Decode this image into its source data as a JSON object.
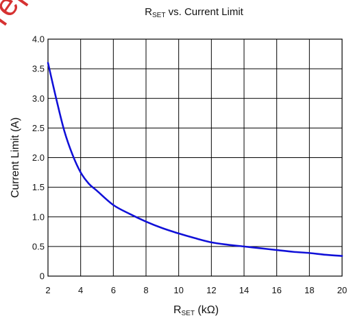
{
  "watermark": "rep",
  "chart_data": {
    "type": "line",
    "title_main": "R",
    "title_sub": "SET",
    "title_rest": " vs. Current Limit",
    "xlabel_main": "R",
    "xlabel_sub": "SET",
    "xlabel_rest": " (kΩ)",
    "ylabel": "Current Limit (A)",
    "xlim": [
      2,
      20
    ],
    "ylim": [
      0,
      4.0
    ],
    "xticks": [
      "2",
      "4",
      "6",
      "8",
      "10",
      "12",
      "14",
      "16",
      "18",
      "20"
    ],
    "yticks": [
      "0",
      "0.5",
      "1.0",
      "1.5",
      "2.0",
      "2.5",
      "3.0",
      "3.5",
      "4.0"
    ],
    "grid": true,
    "series_color": "#1010d8",
    "series": [
      {
        "x": [
          2,
          2.5,
          3,
          3.5,
          4,
          4.5,
          5,
          6,
          7,
          8,
          9,
          10,
          11,
          12,
          13,
          14,
          15,
          16,
          17,
          18,
          19,
          20
        ],
        "y": [
          3.6,
          3.0,
          2.45,
          2.05,
          1.75,
          1.56,
          1.44,
          1.2,
          1.05,
          0.92,
          0.81,
          0.72,
          0.64,
          0.57,
          0.53,
          0.5,
          0.47,
          0.44,
          0.41,
          0.39,
          0.36,
          0.34
        ]
      }
    ]
  }
}
